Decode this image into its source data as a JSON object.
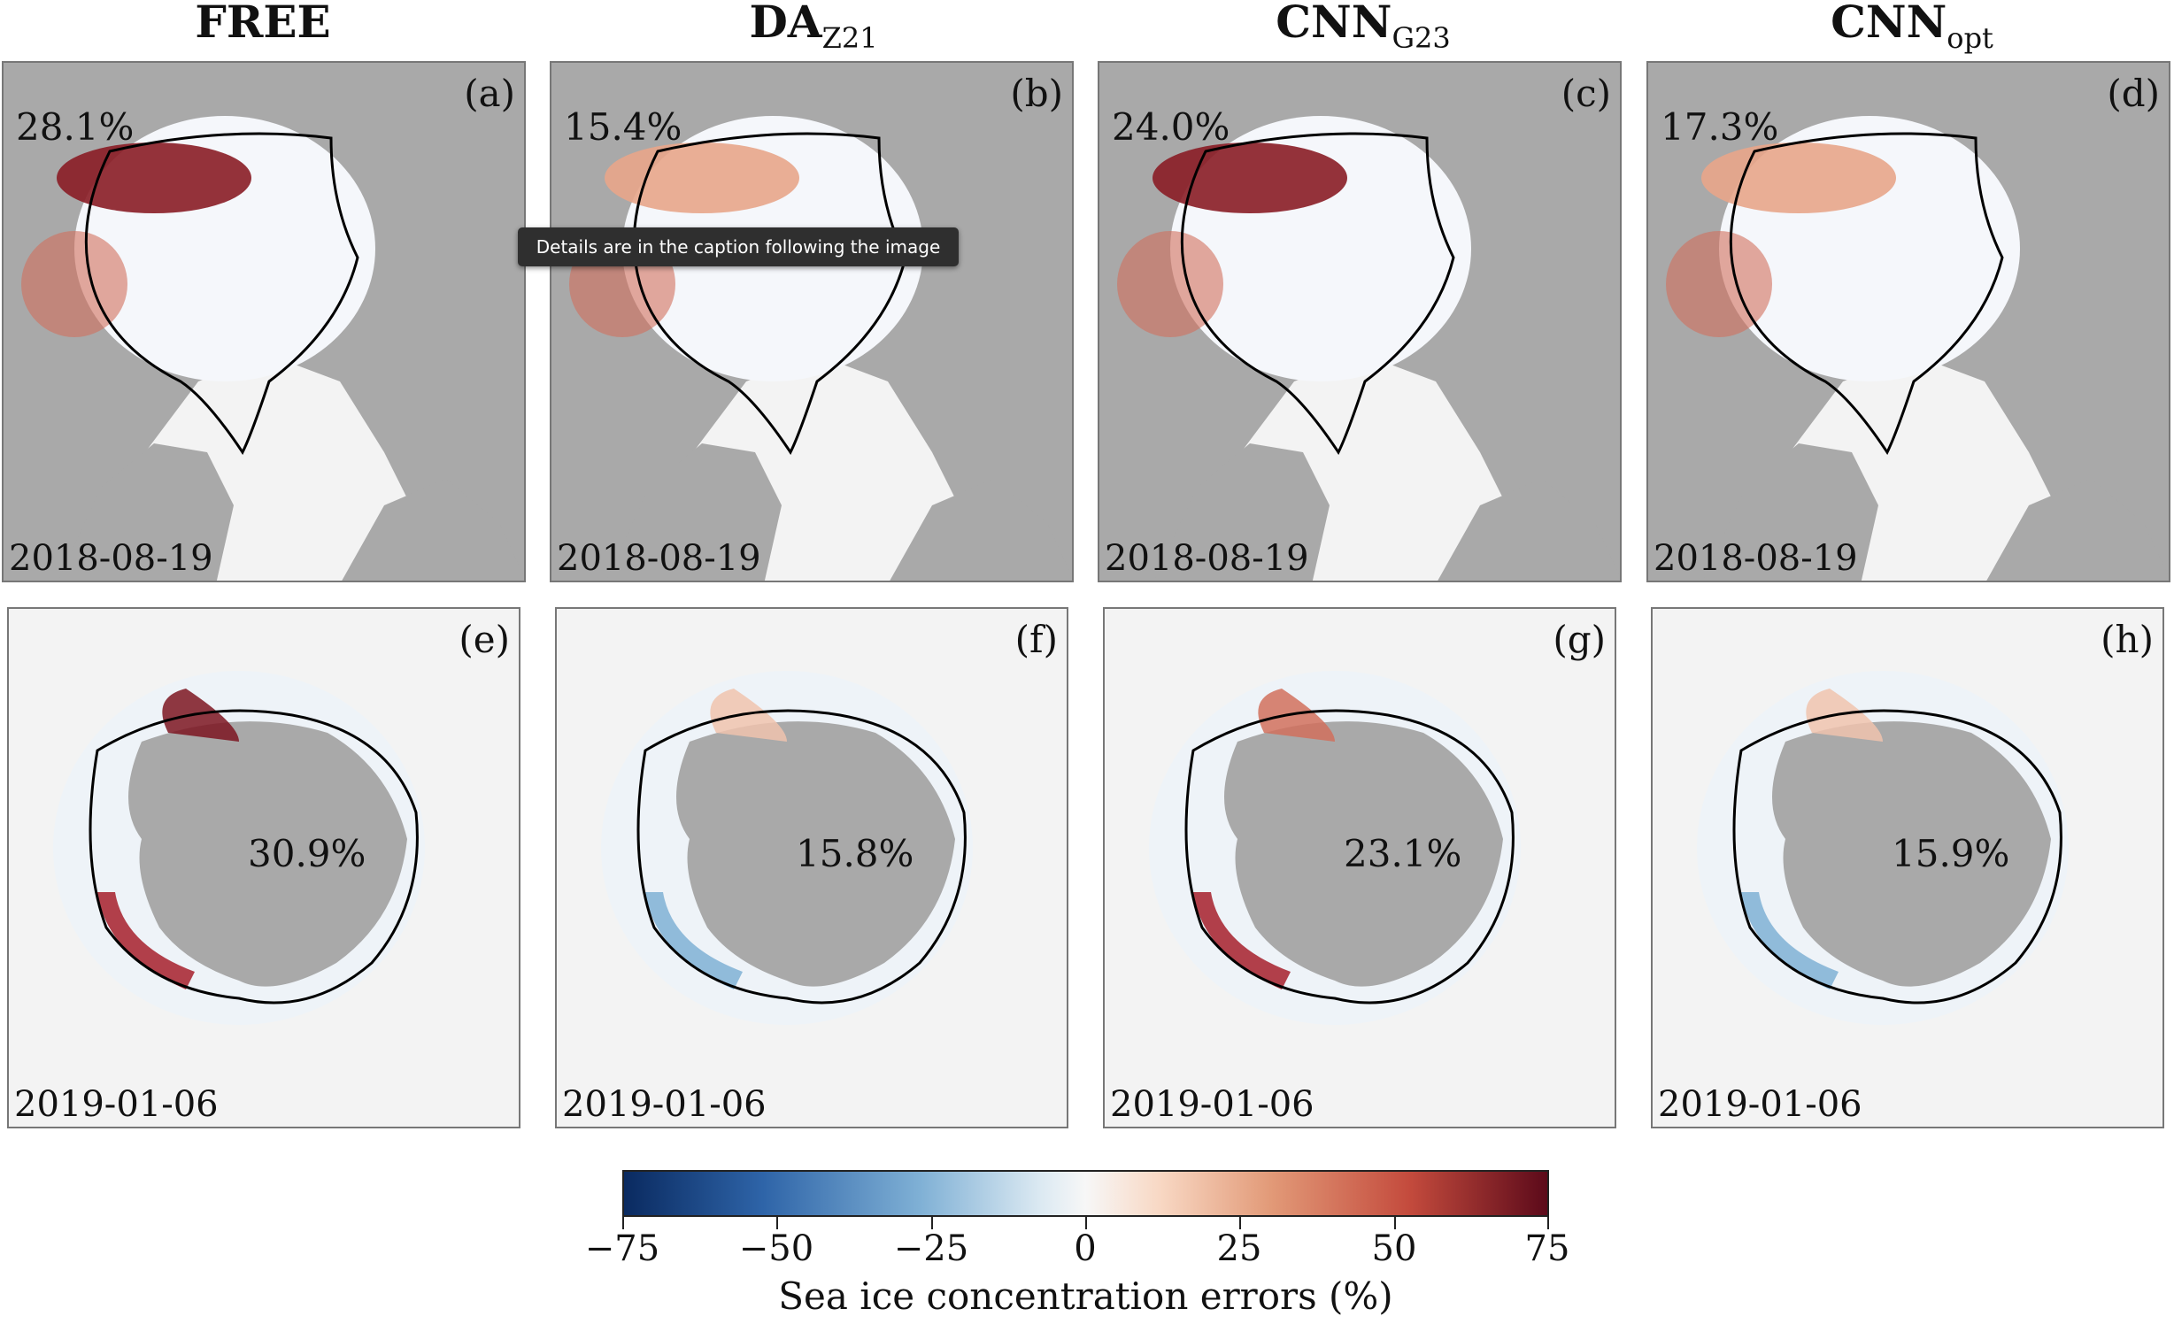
{
  "columns": [
    {
      "main": "FREE",
      "sub": ""
    },
    {
      "main": "DA",
      "sub": "Z21"
    },
    {
      "main": "CNN",
      "sub": "G23"
    },
    {
      "main": "CNN",
      "sub": "opt"
    }
  ],
  "arctic_panels": [
    {
      "label": "(a)",
      "pct": "28.1%",
      "date": "2018-08-19"
    },
    {
      "label": "(b)",
      "pct": "15.4%",
      "date": "2018-08-19"
    },
    {
      "label": "(c)",
      "pct": "24.0%",
      "date": "2018-08-19"
    },
    {
      "label": "(d)",
      "pct": "17.3%",
      "date": "2018-08-19"
    }
  ],
  "antarctic_panels": [
    {
      "label": "(e)",
      "pct": "30.9%",
      "date": "2019-01-06"
    },
    {
      "label": "(f)",
      "pct": "15.8%",
      "date": "2019-01-06"
    },
    {
      "label": "(g)",
      "pct": "23.1%",
      "date": "2019-01-06"
    },
    {
      "label": "(h)",
      "pct": "15.9%",
      "date": "2019-01-06"
    }
  ],
  "tooltip": "Details are in the caption following the image",
  "colorbar": {
    "ticks": [
      "−75",
      "−50",
      "−25",
      "0",
      "25",
      "50",
      "75"
    ],
    "label": "Sea ice concentration errors (%)",
    "colors": {
      "low": "#0a2a60",
      "mid": "#f7f7f7",
      "high": "#5c0a1a"
    }
  },
  "colors": {
    "land": "#a9a9a9",
    "background": "#f3f3f3",
    "contour": "#000000"
  }
}
